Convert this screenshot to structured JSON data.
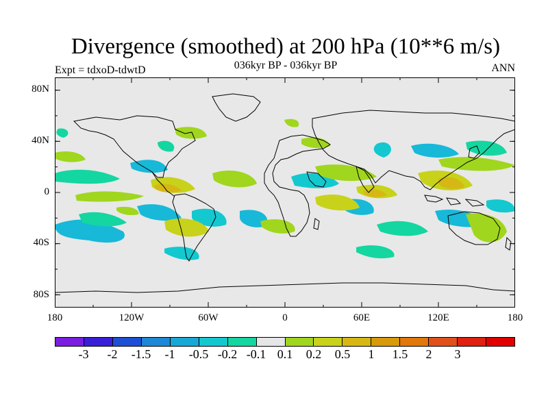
{
  "title": "Divergence (smoothed) at 200 hPa (10**6 m/s)",
  "subtitle": "036kyr BP - 036kyr BP",
  "expt_label": "Expt = tdxoD-tdwtD",
  "season_label": "ANN",
  "map": {
    "projection": "cylindrical equidistant",
    "lon_range": [
      -180,
      180
    ],
    "lat_range": [
      -90,
      90
    ],
    "background_color": "#e8e8e8",
    "coastline_color": "#000000"
  },
  "axes": {
    "y_ticks": [
      {
        "label": "80N",
        "lat": 80
      },
      {
        "label": "40N",
        "lat": 40
      },
      {
        "label": "0",
        "lat": 0
      },
      {
        "label": "40S",
        "lat": -40
      },
      {
        "label": "80S",
        "lat": -80
      }
    ],
    "x_ticks": [
      {
        "label": "180",
        "lon": -180
      },
      {
        "label": "120W",
        "lon": -120
      },
      {
        "label": "60W",
        "lon": -60
      },
      {
        "label": "0",
        "lon": 0
      },
      {
        "label": "60E",
        "lon": 60
      },
      {
        "label": "120E",
        "lon": 120
      },
      {
        "label": "180",
        "lon": 180
      }
    ]
  },
  "colorbar": {
    "colors": [
      "#7a1ee0",
      "#3a1fd8",
      "#1f4fd4",
      "#1e88d6",
      "#18a8d6",
      "#14c8d0",
      "#14d6a0",
      "#e6e6e6",
      "#a0d61e",
      "#c8d21a",
      "#d6b814",
      "#d69a0a",
      "#e0780a",
      "#e0501a",
      "#e02010",
      "#e00000"
    ],
    "labels": [
      "-3",
      "-2",
      "-1.5",
      "-1",
      "-0.5",
      "-0.2",
      "-0.1",
      "0.1",
      "0.2",
      "0.5",
      "1",
      "1.5",
      "2",
      "3"
    ]
  }
}
